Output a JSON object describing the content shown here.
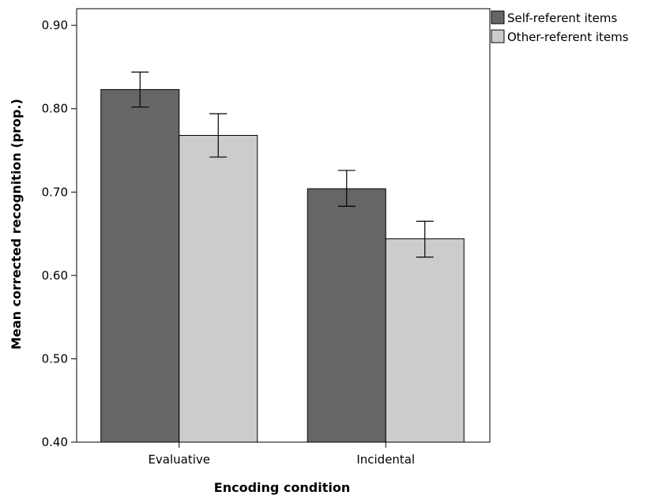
{
  "chart_data": {
    "type": "bar",
    "title": "",
    "xlabel": "Encoding condition",
    "ylabel": "Mean corrected recognition (prop.)",
    "categories": [
      "Evaluative",
      "Incidental"
    ],
    "series": [
      {
        "name": "Self-referent items",
        "color": "#666666",
        "values": [
          0.823,
          0.704
        ],
        "error_low": [
          0.802,
          0.683
        ],
        "error_high": [
          0.844,
          0.726
        ]
      },
      {
        "name": "Other-referent items",
        "color": "#cccccc",
        "values": [
          0.768,
          0.644
        ],
        "error_low": [
          0.742,
          0.622
        ],
        "error_high": [
          0.794,
          0.665
        ]
      }
    ],
    "ylim": [
      0.4,
      0.92
    ],
    "yticks": [
      "0.40",
      "0.50",
      "0.60",
      "0.70",
      "0.80",
      "0.90"
    ],
    "grid": false,
    "legend_position": "top-right"
  }
}
